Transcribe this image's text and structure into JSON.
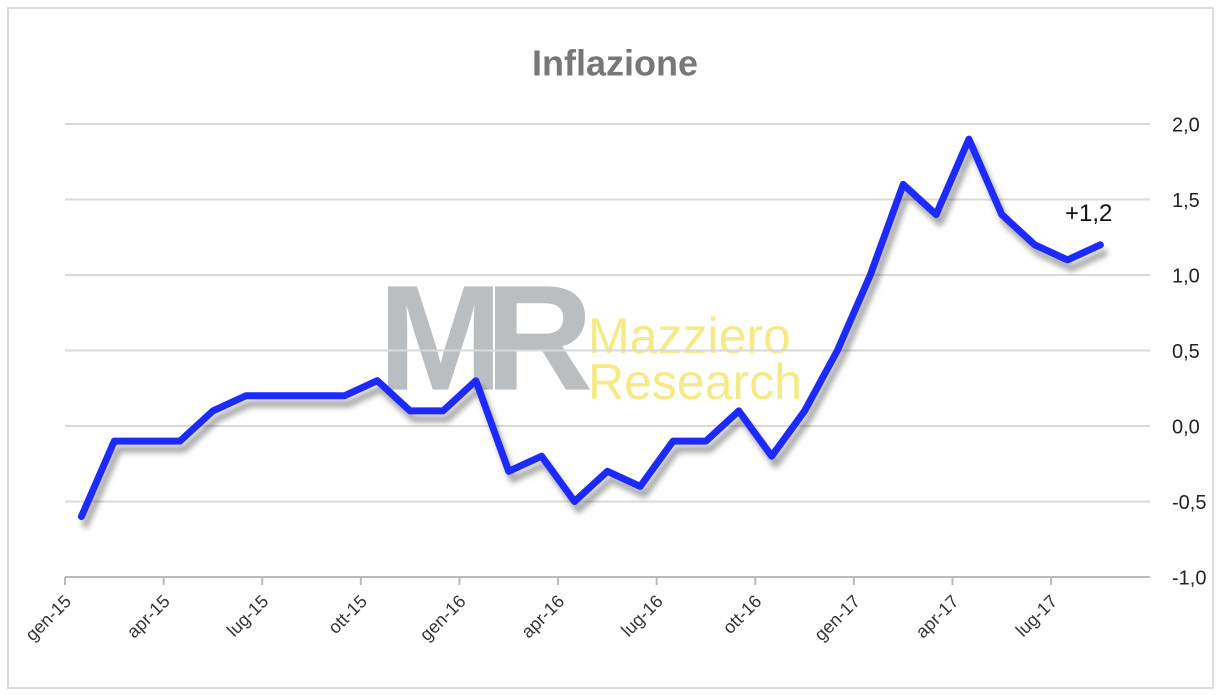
{
  "chart_data": {
    "type": "line",
    "title": "Inflazione",
    "categories": [
      "gen-15",
      null,
      null,
      "apr-15",
      null,
      null,
      "lug-15",
      null,
      null,
      "ott-15",
      null,
      null,
      "gen-16",
      null,
      null,
      "apr-16",
      null,
      null,
      "lug-16",
      null,
      null,
      "ott-16",
      null,
      null,
      "gen-17",
      null,
      null,
      "apr-17",
      null,
      null,
      "lug-17",
      null
    ],
    "series": [
      {
        "name": "Inflazione",
        "color": "#1a2cff",
        "values": [
          -0.6,
          -0.1,
          -0.1,
          -0.1,
          0.1,
          0.2,
          0.2,
          0.2,
          0.2,
          0.3,
          0.1,
          0.1,
          0.3,
          -0.3,
          -0.2,
          -0.5,
          -0.3,
          -0.4,
          -0.1,
          -0.1,
          0.1,
          -0.2,
          0.1,
          0.5,
          1.0,
          1.6,
          1.4,
          1.9,
          1.4,
          1.2,
          1.1,
          1.2
        ],
        "value_labels": [
          null,
          null,
          null,
          null,
          null,
          null,
          null,
          null,
          null,
          null,
          null,
          null,
          null,
          null,
          null,
          null,
          null,
          null,
          null,
          null,
          null,
          null,
          null,
          null,
          null,
          null,
          null,
          null,
          null,
          null,
          null,
          "+1,2"
        ]
      }
    ],
    "ylim": [
      -1.0,
      2.0
    ],
    "yticks": [
      {
        "value": -1.0,
        "label": "-1,0"
      },
      {
        "value": -0.5,
        "label": "-0,5"
      },
      {
        "value": 0.0,
        "label": "0,0"
      },
      {
        "value": 0.5,
        "label": "0,5"
      },
      {
        "value": 1.0,
        "label": "1,0"
      },
      {
        "value": 1.5,
        "label": "1,5"
      },
      {
        "value": 2.0,
        "label": "2,0"
      }
    ],
    "grid": true,
    "watermark": {
      "logo": "MR",
      "lines": [
        "Mazziero",
        "Research"
      ]
    }
  }
}
